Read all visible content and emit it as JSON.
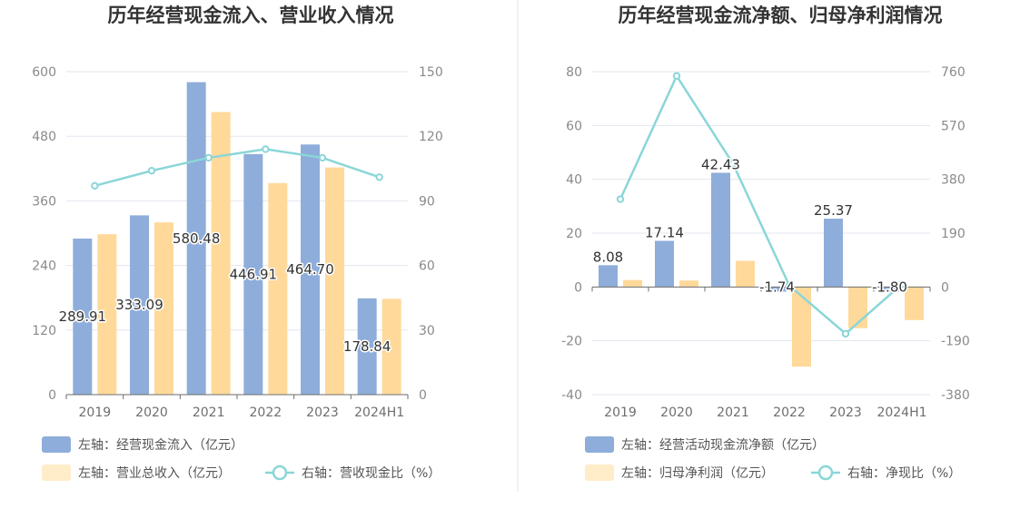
{
  "chart_data": [
    {
      "type": "bar",
      "title": "历年经营现金流入、营业收入情况",
      "categories": [
        "2019",
        "2020",
        "2021",
        "2022",
        "2023",
        "2024H1"
      ],
      "left_axis": {
        "ticks": [
          "0",
          "120",
          "240",
          "360",
          "480",
          "600"
        ],
        "ylim": [
          0,
          600
        ]
      },
      "right_axis": {
        "ticks": [
          "0",
          "30",
          "60",
          "90",
          "120",
          "150"
        ],
        "ylim": [
          0,
          150
        ]
      },
      "series": [
        {
          "name": "左轴：经营现金流入（亿元）",
          "axis": "left",
          "kind": "bar",
          "color": "#8eadda",
          "values": [
            289.91,
            333.09,
            580.48,
            446.91,
            464.7,
            178.84
          ],
          "labels": [
            "289.91",
            "333.09",
            "580.48",
            "446.91",
            "464.70",
            "178.84"
          ]
        },
        {
          "name": "左轴：营业总收入（亿元）",
          "axis": "left",
          "kind": "bar",
          "color": "#ffd99a",
          "values": [
            298,
            320,
            525,
            393,
            422,
            178
          ]
        },
        {
          "name": "右轴：营收现金比（%）",
          "axis": "right",
          "kind": "line",
          "color": "#8ad6d8",
          "values": [
            97,
            104,
            110,
            114,
            110,
            101
          ]
        }
      ],
      "grid": true,
      "legend": "bottom"
    },
    {
      "type": "bar",
      "title": "历年经营现金流净额、归母净利润情况",
      "categories": [
        "2019",
        "2020",
        "2021",
        "2022",
        "2023",
        "2024H1"
      ],
      "left_axis": {
        "ticks": [
          "-40",
          "-20",
          "0",
          "20",
          "40",
          "60",
          "80"
        ],
        "ylim": [
          -40,
          80
        ]
      },
      "right_axis": {
        "ticks": [
          "-380",
          "-190",
          "0",
          "190",
          "380",
          "570",
          "760"
        ],
        "ylim": [
          -380,
          760
        ]
      },
      "series": [
        {
          "name": "左轴：经营活动现金流净额（亿元）",
          "axis": "left",
          "kind": "bar",
          "color": "#8eadda",
          "values": [
            8.08,
            17.14,
            42.43,
            -1.74,
            25.37,
            -1.8
          ],
          "labels": [
            "8.08",
            "17.14",
            "42.43",
            "-1.74",
            "25.37",
            "-1.80"
          ]
        },
        {
          "name": "左轴：归母净利润（亿元）",
          "axis": "left",
          "kind": "bar",
          "color": "#ffd99a",
          "values": [
            2.6,
            2.4,
            9.7,
            -29.6,
            -15.3,
            -12.3
          ]
        },
        {
          "name": "右轴：净现比（%）",
          "axis": "right",
          "kind": "line",
          "color": "#8ad6d8",
          "values": [
            310,
            745,
            435,
            5,
            -165,
            10
          ]
        }
      ],
      "grid": true,
      "legend": "bottom"
    }
  ]
}
